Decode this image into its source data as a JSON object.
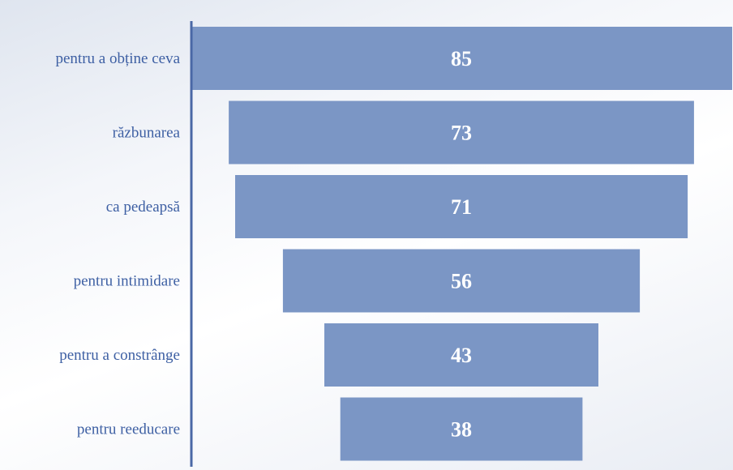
{
  "chart_data": {
    "type": "bar",
    "orientation": "horizontal-funnel",
    "categories": [
      "pentru a obține ceva",
      "răzbunarea",
      "ca pedeapsă",
      "pentru intimidare",
      "pentru a constrânge",
      "pentru reeducare"
    ],
    "values": [
      85,
      73,
      71,
      56,
      43,
      38
    ],
    "title": "",
    "xlabel": "",
    "ylabel": "",
    "grid": false,
    "legend": "none",
    "data_labels": true
  },
  "colors": {
    "bar": "#7b96c5",
    "axis": "#4a68a6",
    "category_text": "#3d5fa3",
    "value_text": "#ffffff"
  }
}
